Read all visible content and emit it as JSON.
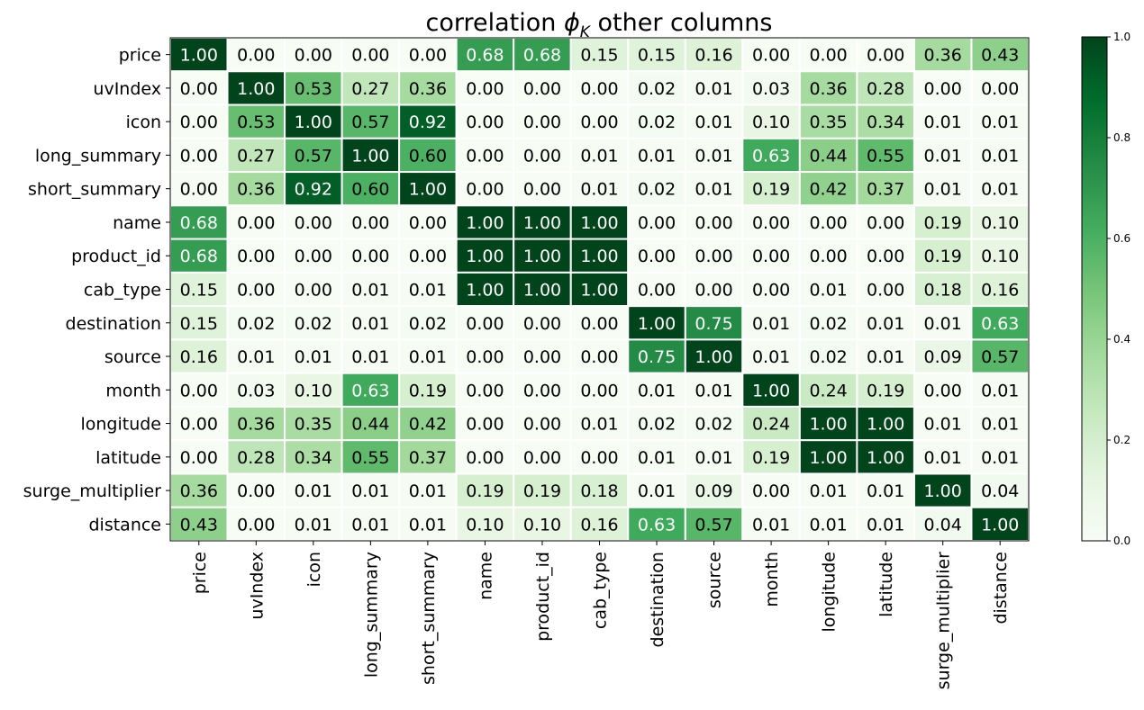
{
  "chart_data": {
    "type": "heatmap",
    "title": "correlation φK other columns",
    "title_main": "correlation ",
    "title_symbol": "ϕ",
    "title_subscript": "K",
    "title_rest": " other columns",
    "labels": [
      "price",
      "uvIndex",
      "icon",
      "long_summary",
      "short_summary",
      "name",
      "product_id",
      "cab_type",
      "destination",
      "source",
      "month",
      "longitude",
      "latitude",
      "surge_multiplier",
      "distance"
    ],
    "values": [
      [
        1.0,
        0.0,
        0.0,
        0.0,
        0.0,
        0.68,
        0.68,
        0.15,
        0.15,
        0.16,
        0.0,
        0.0,
        0.0,
        0.36,
        0.43
      ],
      [
        0.0,
        1.0,
        0.53,
        0.27,
        0.36,
        0.0,
        0.0,
        0.0,
        0.02,
        0.01,
        0.03,
        0.36,
        0.28,
        0.0,
        0.0
      ],
      [
        0.0,
        0.53,
        1.0,
        0.57,
        0.92,
        0.0,
        0.0,
        0.0,
        0.02,
        0.01,
        0.1,
        0.35,
        0.34,
        0.01,
        0.01
      ],
      [
        0.0,
        0.27,
        0.57,
        1.0,
        0.6,
        0.0,
        0.0,
        0.01,
        0.01,
        0.01,
        0.63,
        0.44,
        0.55,
        0.01,
        0.01
      ],
      [
        0.0,
        0.36,
        0.92,
        0.6,
        1.0,
        0.0,
        0.0,
        0.01,
        0.02,
        0.01,
        0.19,
        0.42,
        0.37,
        0.01,
        0.01
      ],
      [
        0.68,
        0.0,
        0.0,
        0.0,
        0.0,
        1.0,
        1.0,
        1.0,
        0.0,
        0.0,
        0.0,
        0.0,
        0.0,
        0.19,
        0.1
      ],
      [
        0.68,
        0.0,
        0.0,
        0.0,
        0.0,
        1.0,
        1.0,
        1.0,
        0.0,
        0.0,
        0.0,
        0.0,
        0.0,
        0.19,
        0.1
      ],
      [
        0.15,
        0.0,
        0.0,
        0.01,
        0.01,
        1.0,
        1.0,
        1.0,
        0.0,
        0.0,
        0.0,
        0.01,
        0.0,
        0.18,
        0.16
      ],
      [
        0.15,
        0.02,
        0.02,
        0.01,
        0.02,
        0.0,
        0.0,
        0.0,
        1.0,
        0.75,
        0.01,
        0.02,
        0.01,
        0.01,
        0.63
      ],
      [
        0.16,
        0.01,
        0.01,
        0.01,
        0.01,
        0.0,
        0.0,
        0.0,
        0.75,
        1.0,
        0.01,
        0.02,
        0.01,
        0.09,
        0.57
      ],
      [
        0.0,
        0.03,
        0.1,
        0.63,
        0.19,
        0.0,
        0.0,
        0.0,
        0.01,
        0.01,
        1.0,
        0.24,
        0.19,
        0.0,
        0.01
      ],
      [
        0.0,
        0.36,
        0.35,
        0.44,
        0.42,
        0.0,
        0.0,
        0.01,
        0.02,
        0.02,
        0.24,
        1.0,
        1.0,
        0.01,
        0.01
      ],
      [
        0.0,
        0.28,
        0.34,
        0.55,
        0.37,
        0.0,
        0.0,
        0.0,
        0.01,
        0.01,
        0.19,
        1.0,
        1.0,
        0.01,
        0.01
      ],
      [
        0.36,
        0.0,
        0.01,
        0.01,
        0.01,
        0.19,
        0.19,
        0.18,
        0.01,
        0.09,
        0.0,
        0.01,
        0.01,
        1.0,
        0.04
      ],
      [
        0.43,
        0.0,
        0.01,
        0.01,
        0.01,
        0.1,
        0.1,
        0.16,
        0.63,
        0.57,
        0.01,
        0.01,
        0.01,
        0.04,
        1.0
      ]
    ],
    "colormap": "Greens",
    "vmin": 0.0,
    "vmax": 1.0,
    "colorbar_ticks": [
      "0.0",
      "0.2",
      "0.4",
      "0.6",
      "0.8",
      "1.0"
    ],
    "grid": false,
    "colorbar_placement": "right"
  }
}
